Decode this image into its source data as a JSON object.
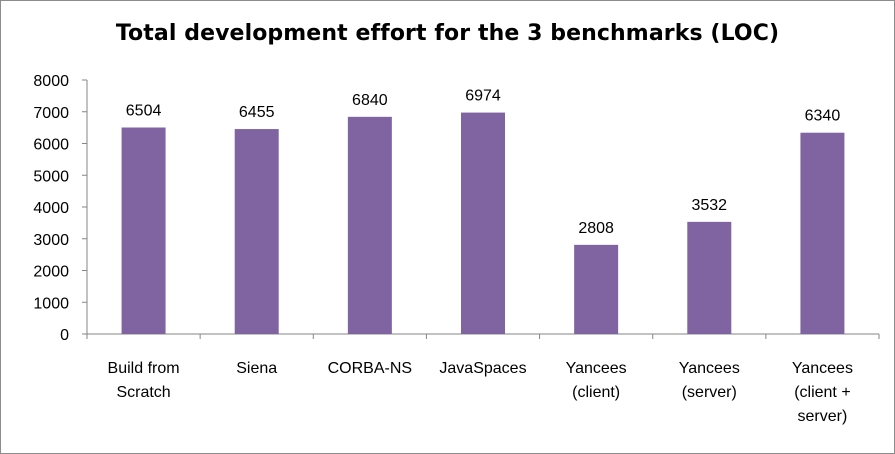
{
  "chart_data": {
    "type": "bar",
    "title": "Total development effort for the 3 benchmarks (LOC)",
    "categories": [
      [
        "Build from",
        "Scratch"
      ],
      [
        "Siena"
      ],
      [
        "CORBA-NS"
      ],
      [
        "JavaSpaces"
      ],
      [
        "Yancees",
        "(client)"
      ],
      [
        "Yancees",
        "(server)"
      ],
      [
        "Yancees",
        "(client +",
        "server)"
      ]
    ],
    "values": [
      6504,
      6455,
      6840,
      6974,
      2808,
      3532,
      6340
    ],
    "data_labels": [
      "6504",
      "6455",
      "6840",
      "6974",
      "2808",
      "3532",
      "6340"
    ],
    "ylim": [
      0,
      8000
    ],
    "yticks": [
      0,
      1000,
      2000,
      3000,
      4000,
      5000,
      6000,
      7000,
      8000
    ],
    "grid": false,
    "legend": "none",
    "bar_color": "#8064a2",
    "axis_color": "#868686"
  }
}
